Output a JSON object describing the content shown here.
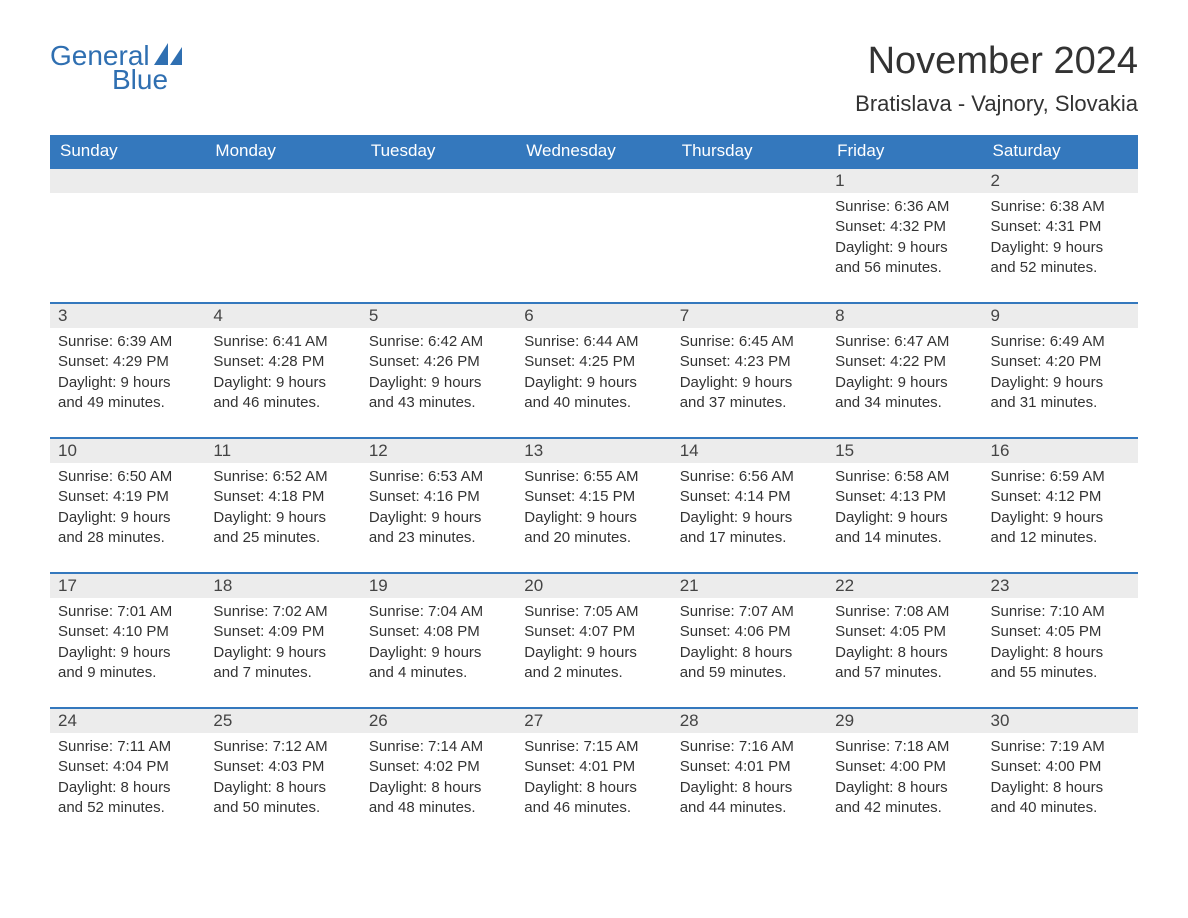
{
  "logo": {
    "text1": "General",
    "text2": "Blue"
  },
  "title": "November 2024",
  "location": "Bratislava - Vajnory, Slovakia",
  "colors": {
    "header_bg": "#3478bd",
    "header_text": "#ffffff",
    "daynum_bg": "#ececec",
    "border": "#3478bd",
    "logo": "#2f6fb1",
    "text": "#333333"
  },
  "day_headers": [
    "Sunday",
    "Monday",
    "Tuesday",
    "Wednesday",
    "Thursday",
    "Friday",
    "Saturday"
  ],
  "weeks": [
    [
      {
        "blank": true
      },
      {
        "blank": true
      },
      {
        "blank": true
      },
      {
        "blank": true
      },
      {
        "blank": true
      },
      {
        "n": "1",
        "sunrise": "Sunrise: 6:36 AM",
        "sunset": "Sunset: 4:32 PM",
        "dl1": "Daylight: 9 hours",
        "dl2": "and 56 minutes."
      },
      {
        "n": "2",
        "sunrise": "Sunrise: 6:38 AM",
        "sunset": "Sunset: 4:31 PM",
        "dl1": "Daylight: 9 hours",
        "dl2": "and 52 minutes."
      }
    ],
    [
      {
        "n": "3",
        "sunrise": "Sunrise: 6:39 AM",
        "sunset": "Sunset: 4:29 PM",
        "dl1": "Daylight: 9 hours",
        "dl2": "and 49 minutes."
      },
      {
        "n": "4",
        "sunrise": "Sunrise: 6:41 AM",
        "sunset": "Sunset: 4:28 PM",
        "dl1": "Daylight: 9 hours",
        "dl2": "and 46 minutes."
      },
      {
        "n": "5",
        "sunrise": "Sunrise: 6:42 AM",
        "sunset": "Sunset: 4:26 PM",
        "dl1": "Daylight: 9 hours",
        "dl2": "and 43 minutes."
      },
      {
        "n": "6",
        "sunrise": "Sunrise: 6:44 AM",
        "sunset": "Sunset: 4:25 PM",
        "dl1": "Daylight: 9 hours",
        "dl2": "and 40 minutes."
      },
      {
        "n": "7",
        "sunrise": "Sunrise: 6:45 AM",
        "sunset": "Sunset: 4:23 PM",
        "dl1": "Daylight: 9 hours",
        "dl2": "and 37 minutes."
      },
      {
        "n": "8",
        "sunrise": "Sunrise: 6:47 AM",
        "sunset": "Sunset: 4:22 PM",
        "dl1": "Daylight: 9 hours",
        "dl2": "and 34 minutes."
      },
      {
        "n": "9",
        "sunrise": "Sunrise: 6:49 AM",
        "sunset": "Sunset: 4:20 PM",
        "dl1": "Daylight: 9 hours",
        "dl2": "and 31 minutes."
      }
    ],
    [
      {
        "n": "10",
        "sunrise": "Sunrise: 6:50 AM",
        "sunset": "Sunset: 4:19 PM",
        "dl1": "Daylight: 9 hours",
        "dl2": "and 28 minutes."
      },
      {
        "n": "11",
        "sunrise": "Sunrise: 6:52 AM",
        "sunset": "Sunset: 4:18 PM",
        "dl1": "Daylight: 9 hours",
        "dl2": "and 25 minutes."
      },
      {
        "n": "12",
        "sunrise": "Sunrise: 6:53 AM",
        "sunset": "Sunset: 4:16 PM",
        "dl1": "Daylight: 9 hours",
        "dl2": "and 23 minutes."
      },
      {
        "n": "13",
        "sunrise": "Sunrise: 6:55 AM",
        "sunset": "Sunset: 4:15 PM",
        "dl1": "Daylight: 9 hours",
        "dl2": "and 20 minutes."
      },
      {
        "n": "14",
        "sunrise": "Sunrise: 6:56 AM",
        "sunset": "Sunset: 4:14 PM",
        "dl1": "Daylight: 9 hours",
        "dl2": "and 17 minutes."
      },
      {
        "n": "15",
        "sunrise": "Sunrise: 6:58 AM",
        "sunset": "Sunset: 4:13 PM",
        "dl1": "Daylight: 9 hours",
        "dl2": "and 14 minutes."
      },
      {
        "n": "16",
        "sunrise": "Sunrise: 6:59 AM",
        "sunset": "Sunset: 4:12 PM",
        "dl1": "Daylight: 9 hours",
        "dl2": "and 12 minutes."
      }
    ],
    [
      {
        "n": "17",
        "sunrise": "Sunrise: 7:01 AM",
        "sunset": "Sunset: 4:10 PM",
        "dl1": "Daylight: 9 hours",
        "dl2": "and 9 minutes."
      },
      {
        "n": "18",
        "sunrise": "Sunrise: 7:02 AM",
        "sunset": "Sunset: 4:09 PM",
        "dl1": "Daylight: 9 hours",
        "dl2": "and 7 minutes."
      },
      {
        "n": "19",
        "sunrise": "Sunrise: 7:04 AM",
        "sunset": "Sunset: 4:08 PM",
        "dl1": "Daylight: 9 hours",
        "dl2": "and 4 minutes."
      },
      {
        "n": "20",
        "sunrise": "Sunrise: 7:05 AM",
        "sunset": "Sunset: 4:07 PM",
        "dl1": "Daylight: 9 hours",
        "dl2": "and 2 minutes."
      },
      {
        "n": "21",
        "sunrise": "Sunrise: 7:07 AM",
        "sunset": "Sunset: 4:06 PM",
        "dl1": "Daylight: 8 hours",
        "dl2": "and 59 minutes."
      },
      {
        "n": "22",
        "sunrise": "Sunrise: 7:08 AM",
        "sunset": "Sunset: 4:05 PM",
        "dl1": "Daylight: 8 hours",
        "dl2": "and 57 minutes."
      },
      {
        "n": "23",
        "sunrise": "Sunrise: 7:10 AM",
        "sunset": "Sunset: 4:05 PM",
        "dl1": "Daylight: 8 hours",
        "dl2": "and 55 minutes."
      }
    ],
    [
      {
        "n": "24",
        "sunrise": "Sunrise: 7:11 AM",
        "sunset": "Sunset: 4:04 PM",
        "dl1": "Daylight: 8 hours",
        "dl2": "and 52 minutes."
      },
      {
        "n": "25",
        "sunrise": "Sunrise: 7:12 AM",
        "sunset": "Sunset: 4:03 PM",
        "dl1": "Daylight: 8 hours",
        "dl2": "and 50 minutes."
      },
      {
        "n": "26",
        "sunrise": "Sunrise: 7:14 AM",
        "sunset": "Sunset: 4:02 PM",
        "dl1": "Daylight: 8 hours",
        "dl2": "and 48 minutes."
      },
      {
        "n": "27",
        "sunrise": "Sunrise: 7:15 AM",
        "sunset": "Sunset: 4:01 PM",
        "dl1": "Daylight: 8 hours",
        "dl2": "and 46 minutes."
      },
      {
        "n": "28",
        "sunrise": "Sunrise: 7:16 AM",
        "sunset": "Sunset: 4:01 PM",
        "dl1": "Daylight: 8 hours",
        "dl2": "and 44 minutes."
      },
      {
        "n": "29",
        "sunrise": "Sunrise: 7:18 AM",
        "sunset": "Sunset: 4:00 PM",
        "dl1": "Daylight: 8 hours",
        "dl2": "and 42 minutes."
      },
      {
        "n": "30",
        "sunrise": "Sunrise: 7:19 AM",
        "sunset": "Sunset: 4:00 PM",
        "dl1": "Daylight: 8 hours",
        "dl2": "and 40 minutes."
      }
    ]
  ]
}
